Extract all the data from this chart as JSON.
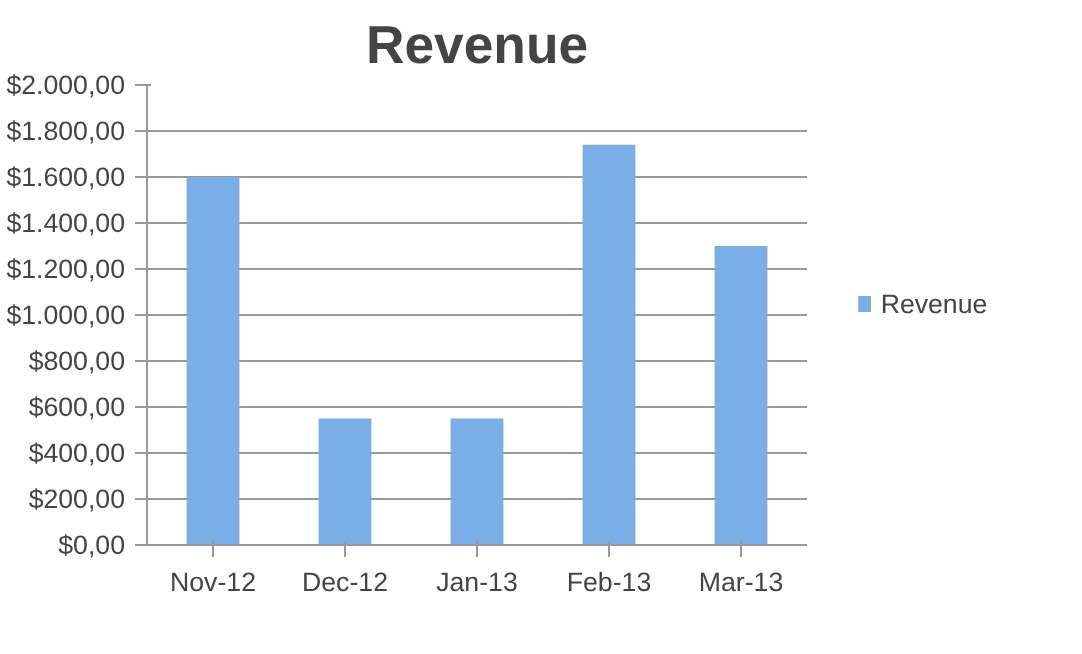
{
  "chart_data": {
    "type": "bar",
    "title": "Revenue",
    "categories": [
      "Nov-12",
      "Dec-12",
      "Jan-13",
      "Feb-13",
      "Mar-13"
    ],
    "series": [
      {
        "name": "Revenue",
        "color": "#7aaee6",
        "values": [
          1600,
          550,
          550,
          1740,
          1300
        ]
      }
    ],
    "ylim": [
      0,
      2000
    ],
    "yticks": [
      {
        "value": 0,
        "label": "$0,00"
      },
      {
        "value": 200,
        "label": "$200,00"
      },
      {
        "value": 400,
        "label": "$400,00"
      },
      {
        "value": 600,
        "label": "$600,00"
      },
      {
        "value": 800,
        "label": "$800,00"
      },
      {
        "value": 1000,
        "label": "$1.000,00"
      },
      {
        "value": 1200,
        "label": "$1.200,00"
      },
      {
        "value": 1400,
        "label": "$1.400,00"
      },
      {
        "value": 1600,
        "label": "$1.600,00"
      },
      {
        "value": 1800,
        "label": "$1.800,00"
      },
      {
        "value": 2000,
        "label": "$2.000,00"
      }
    ],
    "grid": "y",
    "legend": "right"
  }
}
